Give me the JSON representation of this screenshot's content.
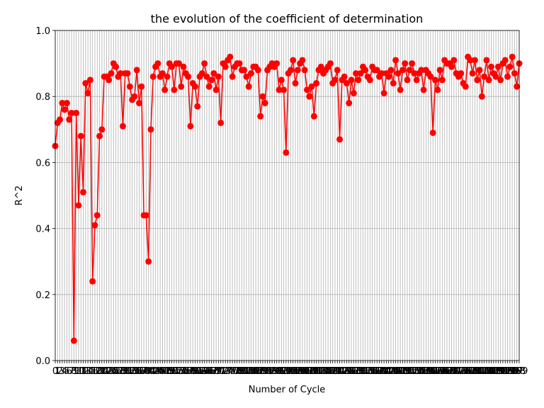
{
  "chart_data": {
    "type": "line",
    "title": "the evolution of the coefficient of determination",
    "xlabel": "Number of Cycle",
    "ylabel": "R^2",
    "color": "#ff0000",
    "grid": true,
    "x": [
      0,
      1,
      2,
      3,
      4,
      5,
      6,
      7,
      8,
      9,
      10,
      11,
      12,
      13,
      14,
      15,
      16,
      17,
      18,
      19,
      20,
      21,
      22,
      23,
      24,
      25,
      26,
      27,
      28,
      29,
      30,
      31,
      32,
      33,
      34,
      35,
      36,
      37,
      38,
      39,
      40,
      41,
      42,
      43,
      44,
      45,
      46,
      47,
      48,
      49,
      50,
      51,
      52,
      53,
      54,
      55,
      56,
      57,
      58,
      59,
      60,
      61,
      62,
      63,
      64,
      65,
      66,
      67,
      68,
      69,
      70,
      71,
      72,
      73,
      74,
      75,
      76,
      77,
      78,
      79,
      80,
      81,
      82,
      83,
      84,
      85,
      86,
      87,
      88,
      89,
      90,
      91,
      92,
      93,
      94,
      95,
      96,
      97,
      98,
      99,
      100,
      101,
      102,
      103,
      104,
      105,
      106,
      107,
      108,
      109,
      110,
      111,
      112,
      113,
      114,
      115,
      116,
      117,
      118,
      119,
      120,
      121,
      122,
      123,
      124,
      125,
      126,
      127,
      128,
      129,
      130,
      131,
      132,
      133,
      134,
      135,
      136,
      137,
      138,
      139,
      140,
      141,
      142,
      143,
      144,
      145,
      146,
      147,
      148,
      149,
      150,
      151,
      152,
      153,
      154,
      155,
      156,
      157,
      158,
      159,
      160,
      161,
      162,
      163,
      164,
      165,
      166,
      167,
      168,
      169,
      170,
      171,
      172,
      173,
      174,
      175,
      176,
      177,
      178,
      179,
      180,
      181,
      182,
      183,
      184,
      185,
      186,
      187,
      188,
      189,
      190,
      191,
      192,
      193,
      194,
      195,
      196,
      197,
      198,
      199
    ],
    "values": [
      0.65,
      0.72,
      0.73,
      0.78,
      0.76,
      0.78,
      0.73,
      0.75,
      0.06,
      0.75,
      0.47,
      0.68,
      0.51,
      0.84,
      0.81,
      0.85,
      0.24,
      0.41,
      0.44,
      0.68,
      0.7,
      0.86,
      0.86,
      0.85,
      0.87,
      0.9,
      0.89,
      0.86,
      0.87,
      0.71,
      0.87,
      0.87,
      0.83,
      0.79,
      0.8,
      0.88,
      0.78,
      0.83,
      0.44,
      0.44,
      0.3,
      0.7,
      0.86,
      0.89,
      0.9,
      0.86,
      0.87,
      0.82,
      0.86,
      0.9,
      0.89,
      0.82,
      0.9,
      0.9,
      0.83,
      0.89,
      0.87,
      0.86,
      0.71,
      0.84,
      0.83,
      0.77,
      0.86,
      0.87,
      0.9,
      0.86,
      0.83,
      0.85,
      0.87,
      0.82,
      0.86,
      0.72,
      0.9,
      0.89,
      0.91,
      0.92,
      0.86,
      0.89,
      0.9,
      0.9,
      0.88,
      0.88,
      0.86,
      0.83,
      0.87,
      0.89,
      0.89,
      0.88,
      0.74,
      0.8,
      0.78,
      0.88,
      0.89,
      0.9,
      0.89,
      0.9,
      0.82,
      0.85,
      0.82,
      0.63,
      0.87,
      0.88,
      0.91,
      0.84,
      0.88,
      0.9,
      0.91,
      0.88,
      0.82,
      0.8,
      0.83,
      0.74,
      0.84,
      0.88,
      0.89,
      0.87,
      0.88,
      0.89,
      0.9,
      0.84,
      0.85,
      0.88,
      0.67,
      0.85,
      0.86,
      0.84,
      0.78,
      0.85,
      0.81,
      0.87,
      0.85,
      0.87,
      0.89,
      0.88,
      0.86,
      0.85,
      0.89,
      0.88,
      0.88,
      0.86,
      0.87,
      0.81,
      0.87,
      0.86,
      0.88,
      0.84,
      0.91,
      0.87,
      0.82,
      0.88,
      0.9,
      0.85,
      0.88,
      0.9,
      0.87,
      0.85,
      0.87,
      0.88,
      0.82,
      0.88,
      0.87,
      0.86,
      0.69,
      0.85,
      0.82,
      0.88,
      0.85,
      0.91,
      0.9,
      0.9,
      0.89,
      0.91,
      0.87,
      0.86,
      0.87,
      0.84,
      0.83,
      0.92,
      0.91,
      0.87,
      0.91,
      0.85,
      0.88,
      0.8,
      0.86,
      0.91,
      0.85,
      0.89,
      0.87,
      0.86,
      0.89,
      0.85,
      0.9,
      0.91,
      0.86,
      0.89,
      0.92,
      0.87,
      0.83,
      0.9
    ],
    "xlim": [
      0,
      199
    ],
    "xticks": [
      0,
      1,
      2,
      3,
      4,
      5,
      6,
      7,
      8,
      9,
      10,
      11,
      12,
      13,
      14,
      15,
      16,
      17,
      18,
      19,
      20,
      21,
      22,
      23,
      24,
      25,
      26,
      27,
      28,
      29,
      30,
      31,
      32,
      33,
      34,
      35,
      36,
      37,
      38,
      39,
      40,
      41,
      42,
      43,
      44,
      45,
      46,
      47,
      48,
      49,
      50,
      51,
      52,
      53,
      54,
      55,
      56,
      57,
      58,
      59,
      60,
      61,
      62,
      63,
      64,
      65,
      66,
      67,
      68,
      69,
      70,
      71,
      72,
      73,
      74,
      75,
      76,
      77,
      78,
      79,
      80,
      81,
      82,
      83,
      84,
      85,
      86,
      87,
      88,
      89,
      90,
      91,
      92,
      93,
      94,
      95,
      96,
      97,
      98,
      99,
      100,
      101,
      102,
      103,
      104,
      105,
      106,
      107,
      108,
      109,
      110,
      111,
      112,
      113,
      114,
      115,
      116,
      117,
      118,
      119,
      120,
      121,
      122,
      123,
      124,
      125,
      126,
      127,
      128,
      129,
      130,
      131,
      132,
      133,
      134,
      135,
      136,
      137,
      138,
      139,
      140,
      141,
      142,
      143,
      144,
      145,
      146,
      147,
      148,
      149,
      150,
      151,
      152,
      153,
      154,
      155,
      156,
      157,
      158,
      159,
      160,
      161,
      162,
      163,
      164,
      165,
      166,
      167,
      168,
      169,
      170,
      171,
      172,
      173,
      174,
      175,
      176,
      177,
      178,
      179,
      180,
      181,
      182,
      183,
      184,
      185,
      186,
      187,
      188,
      189,
      190,
      191,
      192,
      193,
      194,
      195,
      196,
      197,
      198,
      199
    ],
    "ylim": [
      0,
      1
    ],
    "yticks": [
      {
        "value": 0,
        "label": "0.0"
      },
      {
        "value": 0.2,
        "label": "0.2"
      },
      {
        "value": 0.4,
        "label": "0.4"
      },
      {
        "value": 0.6,
        "label": "0.6"
      },
      {
        "value": 0.8,
        "label": "0.8"
      },
      {
        "value": 1,
        "label": "1.0"
      }
    ]
  }
}
